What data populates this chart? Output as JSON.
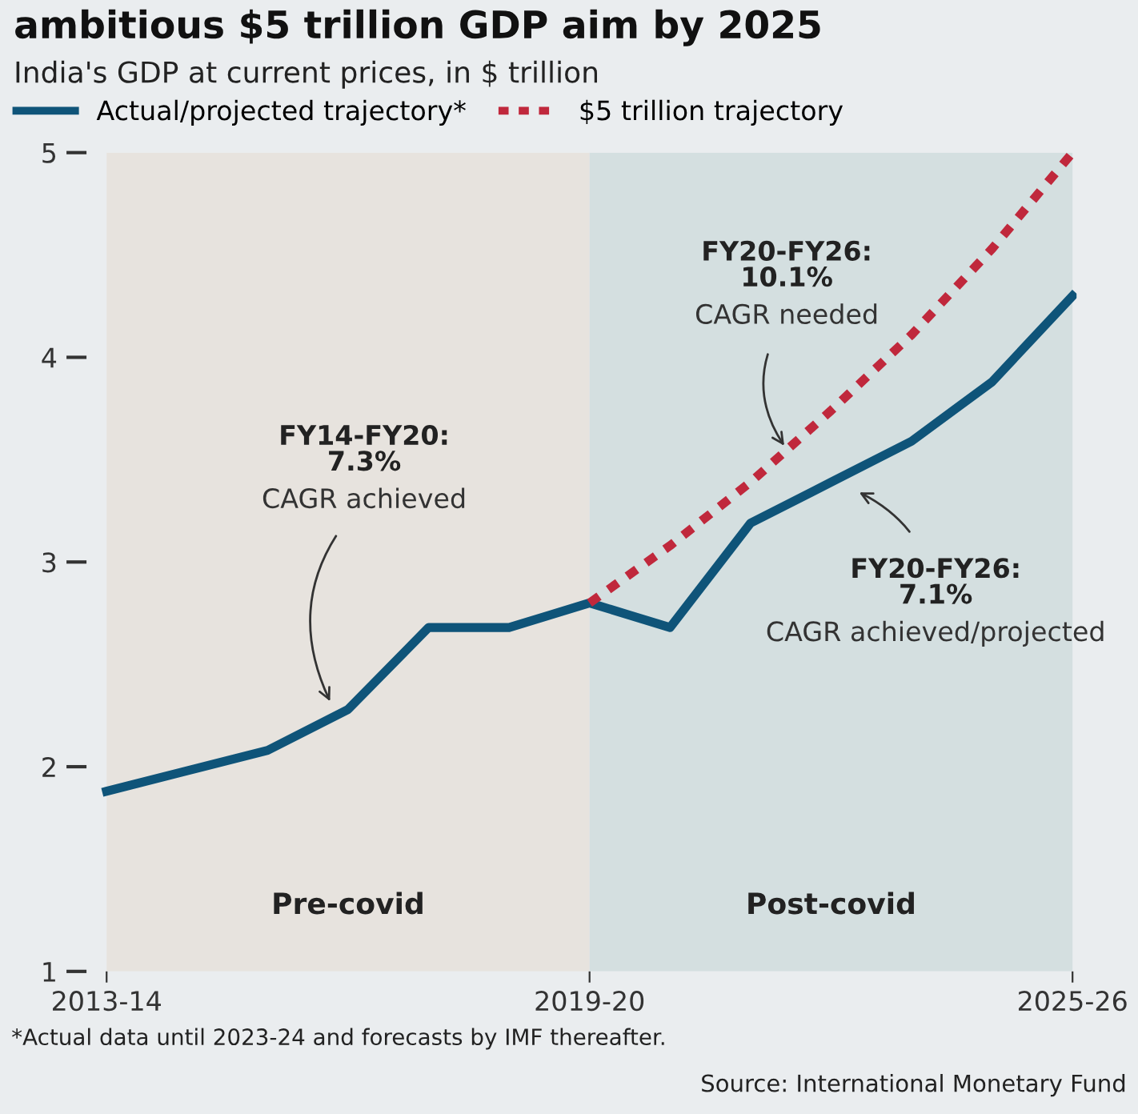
{
  "chart_data": {
    "type": "line",
    "title": "ambitious $5 trillion GDP aim by 2025",
    "subtitle": "India's GDP at current prices, in $ trillion",
    "categories": [
      "2013-14",
      null,
      null,
      null,
      null,
      null,
      "2019-20",
      null,
      null,
      null,
      null,
      null,
      "2025-26"
    ],
    "series": [
      {
        "name": "Actual/projected trajectory*",
        "color": "#0f5479",
        "line_style": "solid",
        "values": [
          1.88,
          1.98,
          2.08,
          2.28,
          2.68,
          2.68,
          2.8,
          2.68,
          3.19,
          3.39,
          3.59,
          3.88,
          4.3
        ]
      },
      {
        "name": "$5 trillion trajectory",
        "color": "#c0283c",
        "line_style": "dashed",
        "values": [
          null,
          null,
          null,
          null,
          null,
          null,
          2.8,
          3.08,
          3.39,
          3.74,
          4.11,
          4.53,
          5.0
        ]
      }
    ],
    "ylim": [
      1,
      5
    ],
    "yticks": [
      1,
      2,
      3,
      4,
      5
    ],
    "grid": false,
    "legend": "top left",
    "marker": "none",
    "bands": [
      {
        "axis": "x",
        "from": "2013-14",
        "to": "2019-20",
        "label": "Pre-covid",
        "color": "#e7e3de"
      },
      {
        "axis": "x",
        "from": "2019-20",
        "to": "2025-26",
        "label": "Post-covid",
        "color": "#d4dfe0"
      }
    ],
    "annotations": [
      "FY14-FY20:\n7.3%\nCAGR achieved",
      {
        "text": "FY20-FY26:\n10.1%\nCAGR needed",
        "y": 3.55
      },
      "FY20-FY26:\n7.1%\nCAGR achieved/projected",
      "*Actual data until 2023-24 and forecasts by IMF thereafter.",
      "Source: International Monetary Fund"
    ]
  }
}
